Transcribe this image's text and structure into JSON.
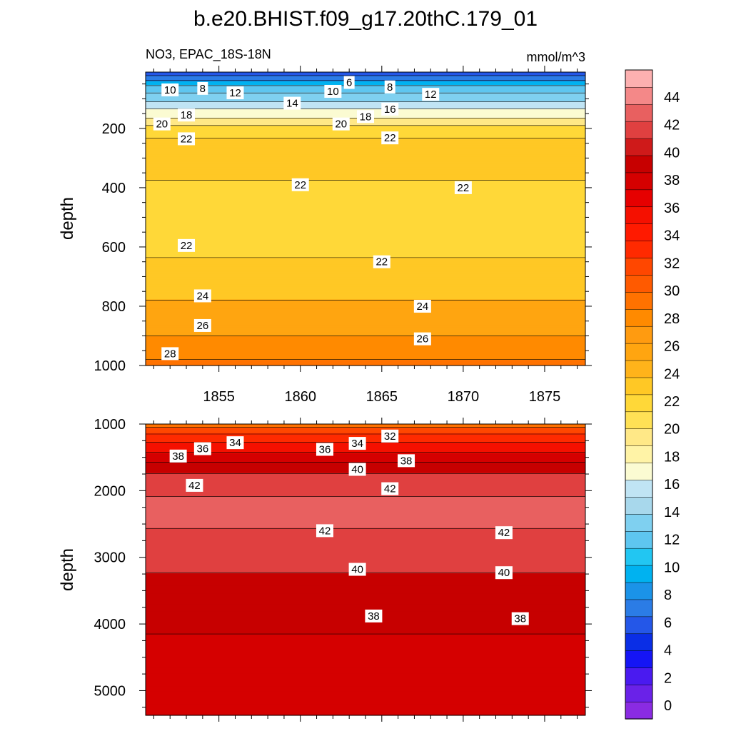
{
  "title": "b.e20.BHIST.f09_g17.20thC.179_01",
  "subtitle_left": "NO3, EPAC_18S-18N",
  "subtitle_right": "mmol/m^3",
  "colors": {
    "axis": "#000000",
    "contour_line": "#000000",
    "label_box": "#ffffff"
  },
  "chart_data": [
    {
      "type": "heatmap",
      "panel": "upper",
      "title": "",
      "xlabel": "",
      "ylabel": "depth",
      "xlim": [
        1850.5,
        1877.5
      ],
      "ylim": [
        1000,
        10
      ],
      "x_ticks": [
        1855,
        1860,
        1865,
        1870,
        1875
      ],
      "x_tick_labels": [
        "1855",
        "1860",
        "1865",
        "1870",
        "1875"
      ],
      "y_ticks": [
        200,
        400,
        600,
        800,
        1000
      ],
      "y_tick_labels": [
        "200",
        "400",
        "600",
        "800",
        "1000"
      ],
      "depth_profile": [
        {
          "depth": 10,
          "value": 4.5
        },
        {
          "depth": 30,
          "value": 7
        },
        {
          "depth": 55,
          "value": 10
        },
        {
          "depth": 80,
          "value": 12
        },
        {
          "depth": 110,
          "value": 14
        },
        {
          "depth": 140,
          "value": 16.5
        },
        {
          "depth": 165,
          "value": 18
        },
        {
          "depth": 190,
          "value": 20
        },
        {
          "depth": 215,
          "value": 21.5
        },
        {
          "depth": 240,
          "value": 22.2
        },
        {
          "depth": 300,
          "value": 22.4
        },
        {
          "depth": 360,
          "value": 22.1
        },
        {
          "depth": 450,
          "value": 21.5
        },
        {
          "depth": 520,
          "value": 21.2
        },
        {
          "depth": 600,
          "value": 21.7
        },
        {
          "depth": 660,
          "value": 22.2
        },
        {
          "depth": 720,
          "value": 23
        },
        {
          "depth": 780,
          "value": 24
        },
        {
          "depth": 840,
          "value": 25
        },
        {
          "depth": 900,
          "value": 26
        },
        {
          "depth": 960,
          "value": 27.5
        },
        {
          "depth": 1000,
          "value": 28.5
        }
      ],
      "contour_labels": [
        {
          "text": "10",
          "x": 1852.0,
          "y": 70
        },
        {
          "text": "8",
          "x": 1854.0,
          "y": 65
        },
        {
          "text": "12",
          "x": 1856.0,
          "y": 80
        },
        {
          "text": "14",
          "x": 1859.5,
          "y": 115
        },
        {
          "text": "10",
          "x": 1862.0,
          "y": 75
        },
        {
          "text": "6",
          "x": 1863.0,
          "y": 45
        },
        {
          "text": "8",
          "x": 1865.5,
          "y": 60
        },
        {
          "text": "12",
          "x": 1868.0,
          "y": 85
        },
        {
          "text": "18",
          "x": 1853.0,
          "y": 155
        },
        {
          "text": "18",
          "x": 1864.0,
          "y": 160
        },
        {
          "text": "16",
          "x": 1865.5,
          "y": 135
        },
        {
          "text": "20",
          "x": 1851.5,
          "y": 185
        },
        {
          "text": "20",
          "x": 1862.5,
          "y": 185
        },
        {
          "text": "22",
          "x": 1853.0,
          "y": 235
        },
        {
          "text": "22",
          "x": 1865.5,
          "y": 232
        },
        {
          "text": "22",
          "x": 1860.0,
          "y": 390
        },
        {
          "text": "22",
          "x": 1870.0,
          "y": 400
        },
        {
          "text": "22",
          "x": 1853.0,
          "y": 595
        },
        {
          "text": "22",
          "x": 1865.0,
          "y": 650
        },
        {
          "text": "24",
          "x": 1854.0,
          "y": 765
        },
        {
          "text": "24",
          "x": 1867.5,
          "y": 800
        },
        {
          "text": "26",
          "x": 1854.0,
          "y": 865
        },
        {
          "text": "26",
          "x": 1867.5,
          "y": 910
        },
        {
          "text": "28",
          "x": 1852.0,
          "y": 960
        }
      ]
    },
    {
      "type": "heatmap",
      "panel": "lower",
      "title": "",
      "xlabel": "",
      "ylabel": "depth",
      "xlim": [
        1850.5,
        1877.5
      ],
      "ylim": [
        5370,
        1000
      ],
      "x_ticks": [
        1855,
        1860,
        1865,
        1870,
        1875
      ],
      "y_ticks": [
        1000,
        2000,
        3000,
        4000,
        5000
      ],
      "y_tick_labels": [
        "1000",
        "2000",
        "3000",
        "4000",
        "5000"
      ],
      "depth_profile": [
        {
          "depth": 1000,
          "value": 29
        },
        {
          "depth": 1100,
          "value": 31
        },
        {
          "depth": 1200,
          "value": 33
        },
        {
          "depth": 1350,
          "value": 35
        },
        {
          "depth": 1500,
          "value": 37
        },
        {
          "depth": 1650,
          "value": 39
        },
        {
          "depth": 1800,
          "value": 40.6
        },
        {
          "depth": 1950,
          "value": 41.5
        },
        {
          "depth": 2200,
          "value": 42.4
        },
        {
          "depth": 2500,
          "value": 42.2
        },
        {
          "depth": 2700,
          "value": 41.6
        },
        {
          "depth": 2950,
          "value": 40.8
        },
        {
          "depth": 3300,
          "value": 39.8
        },
        {
          "depth": 3700,
          "value": 38.8
        },
        {
          "depth": 4100,
          "value": 38.1
        },
        {
          "depth": 4400,
          "value": 37.5
        },
        {
          "depth": 5370,
          "value": 37.3
        }
      ],
      "contour_labels": [
        {
          "text": "38",
          "x": 1852.5,
          "y": 1480
        },
        {
          "text": "36",
          "x": 1854.0,
          "y": 1370
        },
        {
          "text": "34",
          "x": 1856.0,
          "y": 1280
        },
        {
          "text": "36",
          "x": 1861.5,
          "y": 1380
        },
        {
          "text": "34",
          "x": 1863.5,
          "y": 1290
        },
        {
          "text": "32",
          "x": 1865.5,
          "y": 1180
        },
        {
          "text": "38",
          "x": 1866.5,
          "y": 1550
        },
        {
          "text": "40",
          "x": 1863.5,
          "y": 1680
        },
        {
          "text": "42",
          "x": 1853.5,
          "y": 1920
        },
        {
          "text": "42",
          "x": 1865.5,
          "y": 1970
        },
        {
          "text": "42",
          "x": 1861.5,
          "y": 2600
        },
        {
          "text": "42",
          "x": 1872.5,
          "y": 2630
        },
        {
          "text": "40",
          "x": 1863.5,
          "y": 3180
        },
        {
          "text": "40",
          "x": 1872.5,
          "y": 3230
        },
        {
          "text": "38",
          "x": 1864.5,
          "y": 3880
        },
        {
          "text": "38",
          "x": 1873.5,
          "y": 3920
        }
      ]
    }
  ],
  "colorbar": {
    "levels": [
      0,
      2,
      4,
      6,
      8,
      10,
      12,
      14,
      16,
      18,
      20,
      22,
      24,
      26,
      28,
      30,
      32,
      34,
      36,
      38,
      40,
      42,
      44
    ],
    "labels": [
      "0",
      "2",
      "4",
      "6",
      "8",
      "10",
      "12",
      "14",
      "16",
      "18",
      "20",
      "22",
      "24",
      "26",
      "28",
      "30",
      "32",
      "34",
      "36",
      "38",
      "40",
      "42",
      "44"
    ],
    "colors": [
      "#8a2be2",
      "#6a22e8",
      "#4a1af0",
      "#1515f5",
      "#0a2ee6",
      "#2457e8",
      "#2b7ce6",
      "#1b93e8",
      "#00b2f0",
      "#22c6f2",
      "#5ec6f0",
      "#7fd0f0",
      "#a8d8ec",
      "#c0e4f4",
      "#fbfbd2",
      "#fff3a6",
      "#ffe887",
      "#ffe155",
      "#ffd838",
      "#ffc825",
      "#ffb31a",
      "#ffa510",
      "#ff9b10",
      "#ff8a00",
      "#ff7200",
      "#ff5a00",
      "#ff4700",
      "#ff2a00",
      "#ff1a00",
      "#f51000",
      "#e60000",
      "#d50000",
      "#c70000",
      "#cf1a1a",
      "#e04040",
      "#e86060",
      "#f48888",
      "#fcb0b0"
    ],
    "band_values": [
      0,
      1,
      2,
      3,
      4,
      5,
      6,
      7,
      8,
      9,
      10,
      11,
      12,
      13,
      14,
      15,
      16,
      17,
      18,
      19,
      20,
      21,
      22,
      23,
      24,
      25,
      26,
      27,
      28,
      29,
      30,
      31,
      32,
      33,
      34,
      35,
      36,
      37
    ]
  }
}
